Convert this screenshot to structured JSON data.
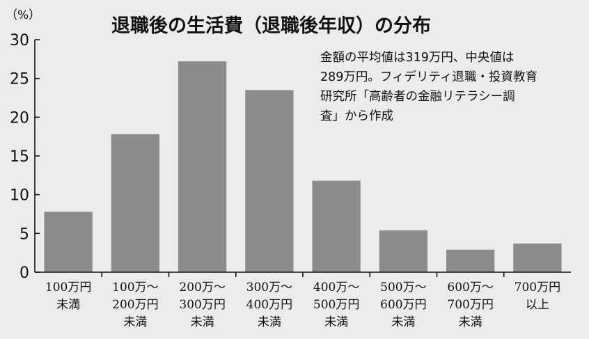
{
  "chart_data": {
    "type": "bar",
    "title": "退職後の生活費（退職後年収）の分布",
    "unit_label": "（%）",
    "categories": [
      [
        "100万円",
        "未満"
      ],
      [
        "100万～",
        "200万円",
        "未満"
      ],
      [
        "200万～",
        "300万円",
        "未満"
      ],
      [
        "300万～",
        "400万円",
        "未満"
      ],
      [
        "400万～",
        "500万円",
        "未満"
      ],
      [
        "500万～",
        "600万円",
        "未満"
      ],
      [
        "600万～",
        "700万円",
        "未満"
      ],
      [
        "700万円",
        "以上"
      ]
    ],
    "values": [
      7.8,
      17.8,
      27.2,
      23.5,
      11.8,
      5.4,
      2.9,
      3.7
    ],
    "ylim": [
      0,
      30
    ],
    "yticks": [
      0,
      5,
      10,
      15,
      20,
      25,
      30
    ],
    "grid": false,
    "bar_color": "#8c8c8c",
    "annotation_lines": [
      "金額の平均値は319万円、中央値は",
      "289万円。フィデリティ退職・投資教育",
      "研究所「高齢者の金融リテラシー調",
      "査」から作成"
    ]
  }
}
